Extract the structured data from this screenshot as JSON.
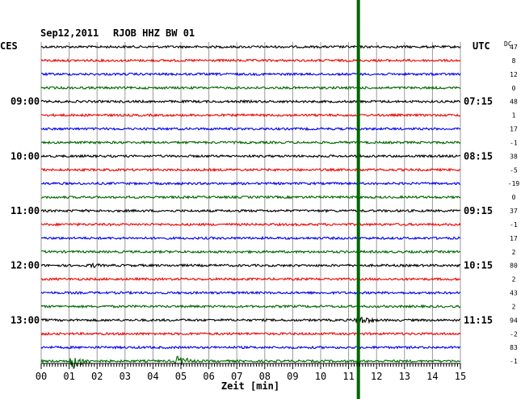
{
  "header": {
    "date": "Sep12,2011",
    "station": "RJOB HHZ BW 01",
    "left_tz": "CES",
    "right_tz": "UTC",
    "dc_label": "DC"
  },
  "chart_data": {
    "type": "line",
    "title": "Sep12,2011 RJOB HHZ BW 01",
    "xlabel": "Zeit [min]",
    "xlim": [
      0,
      15
    ],
    "x_ticks": [
      "00",
      "01",
      "02",
      "03",
      "04",
      "05",
      "06",
      "07",
      "08",
      "09",
      "10",
      "11",
      "12",
      "13",
      "14",
      "15"
    ],
    "left_time_labels": [
      "09:00",
      "10:00",
      "11:00",
      "12:00",
      "13:00"
    ],
    "right_time_labels": [
      "07:15",
      "08:15",
      "09:15",
      "10:15",
      "11:15"
    ],
    "dc_offsets": [
      "47",
      "8",
      "12",
      "0",
      "48",
      "1",
      "17",
      "-1",
      "38",
      "-5",
      "-19",
      "0",
      "37",
      "-1",
      "17",
      "2",
      "80",
      "2",
      "43",
      "2",
      "94",
      "-2",
      "83",
      "-1"
    ],
    "trace_colors": [
      "#000000",
      "#ee0000",
      "#0000ee",
      "#006600"
    ],
    "event_marker": {
      "minute": 11.35,
      "color": "#006600"
    },
    "events": [
      {
        "trace": 23,
        "minute": 1.1,
        "amplitude": "large"
      },
      {
        "trace": 23,
        "minute": 4.9,
        "amplitude": "medium"
      },
      {
        "trace": 16,
        "minute": 1.8,
        "amplitude": "small"
      },
      {
        "trace": 20,
        "minute": 11.35,
        "amplitude": "medium"
      }
    ],
    "grid": true
  }
}
